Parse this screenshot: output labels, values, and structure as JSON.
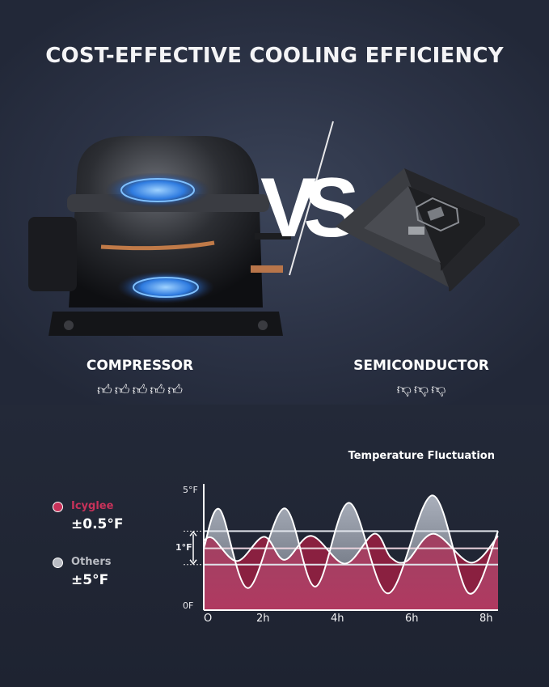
{
  "title": "COST-EFFECTIVE COOLING EFFICIENCY",
  "vs_label": "VS",
  "left": {
    "label": "COMPRESSOR",
    "rating_icon": "thumbs-up-icon",
    "rating_count": 5,
    "color": "#c8325a"
  },
  "right": {
    "label": "SEMICONDUCTOR",
    "rating_icon": "thumbs-down-icon",
    "rating_count": 3,
    "color": "#f2f2f4"
  },
  "legend": [
    {
      "name": "Icyglee",
      "value": "±0.5°F",
      "color": "#c8325a"
    },
    {
      "name": "Others",
      "value": "±5°F",
      "color": "#b9bcc3"
    }
  ],
  "chart_data": {
    "type": "area",
    "title": "Temperature Fluctuation",
    "x_ticks": [
      "O",
      "2h",
      "4h",
      "6h",
      "8h"
    ],
    "y_ticks": [
      "5°F",
      "0F"
    ],
    "band_label": "1°F",
    "band": [
      1.9,
      3.3
    ],
    "midline": 2.58,
    "ylim": [
      0,
      5
    ],
    "xlim": [
      0,
      8
    ],
    "grid": false,
    "series": [
      {
        "name": "Others",
        "color": "#9aa0ad",
        "points": [
          [
            -0.14,
            2.6
          ],
          [
            0.43,
            4.2
          ],
          [
            1.44,
            0.92
          ],
          [
            2.56,
            4.25
          ],
          [
            3.39,
            0.98
          ],
          [
            4.3,
            4.48
          ],
          [
            5.35,
            0.7
          ],
          [
            6.54,
            4.79
          ],
          [
            7.52,
            0.7
          ],
          [
            8.32,
            3.3
          ]
        ]
      },
      {
        "name": "Icyglee",
        "color": "#8a2040",
        "points": [
          [
            -0.14,
            2.9
          ],
          [
            0.18,
            3.0
          ],
          [
            1.05,
            2.05
          ],
          [
            2.01,
            3.06
          ],
          [
            2.56,
            2.1
          ],
          [
            3.28,
            3.1
          ],
          [
            4.19,
            1.94
          ],
          [
            4.98,
            3.19
          ],
          [
            5.42,
            2.2
          ],
          [
            5.85,
            2.05
          ],
          [
            6.57,
            3.19
          ],
          [
            7.58,
            1.98
          ],
          [
            8.32,
            3.1
          ]
        ]
      }
    ]
  }
}
